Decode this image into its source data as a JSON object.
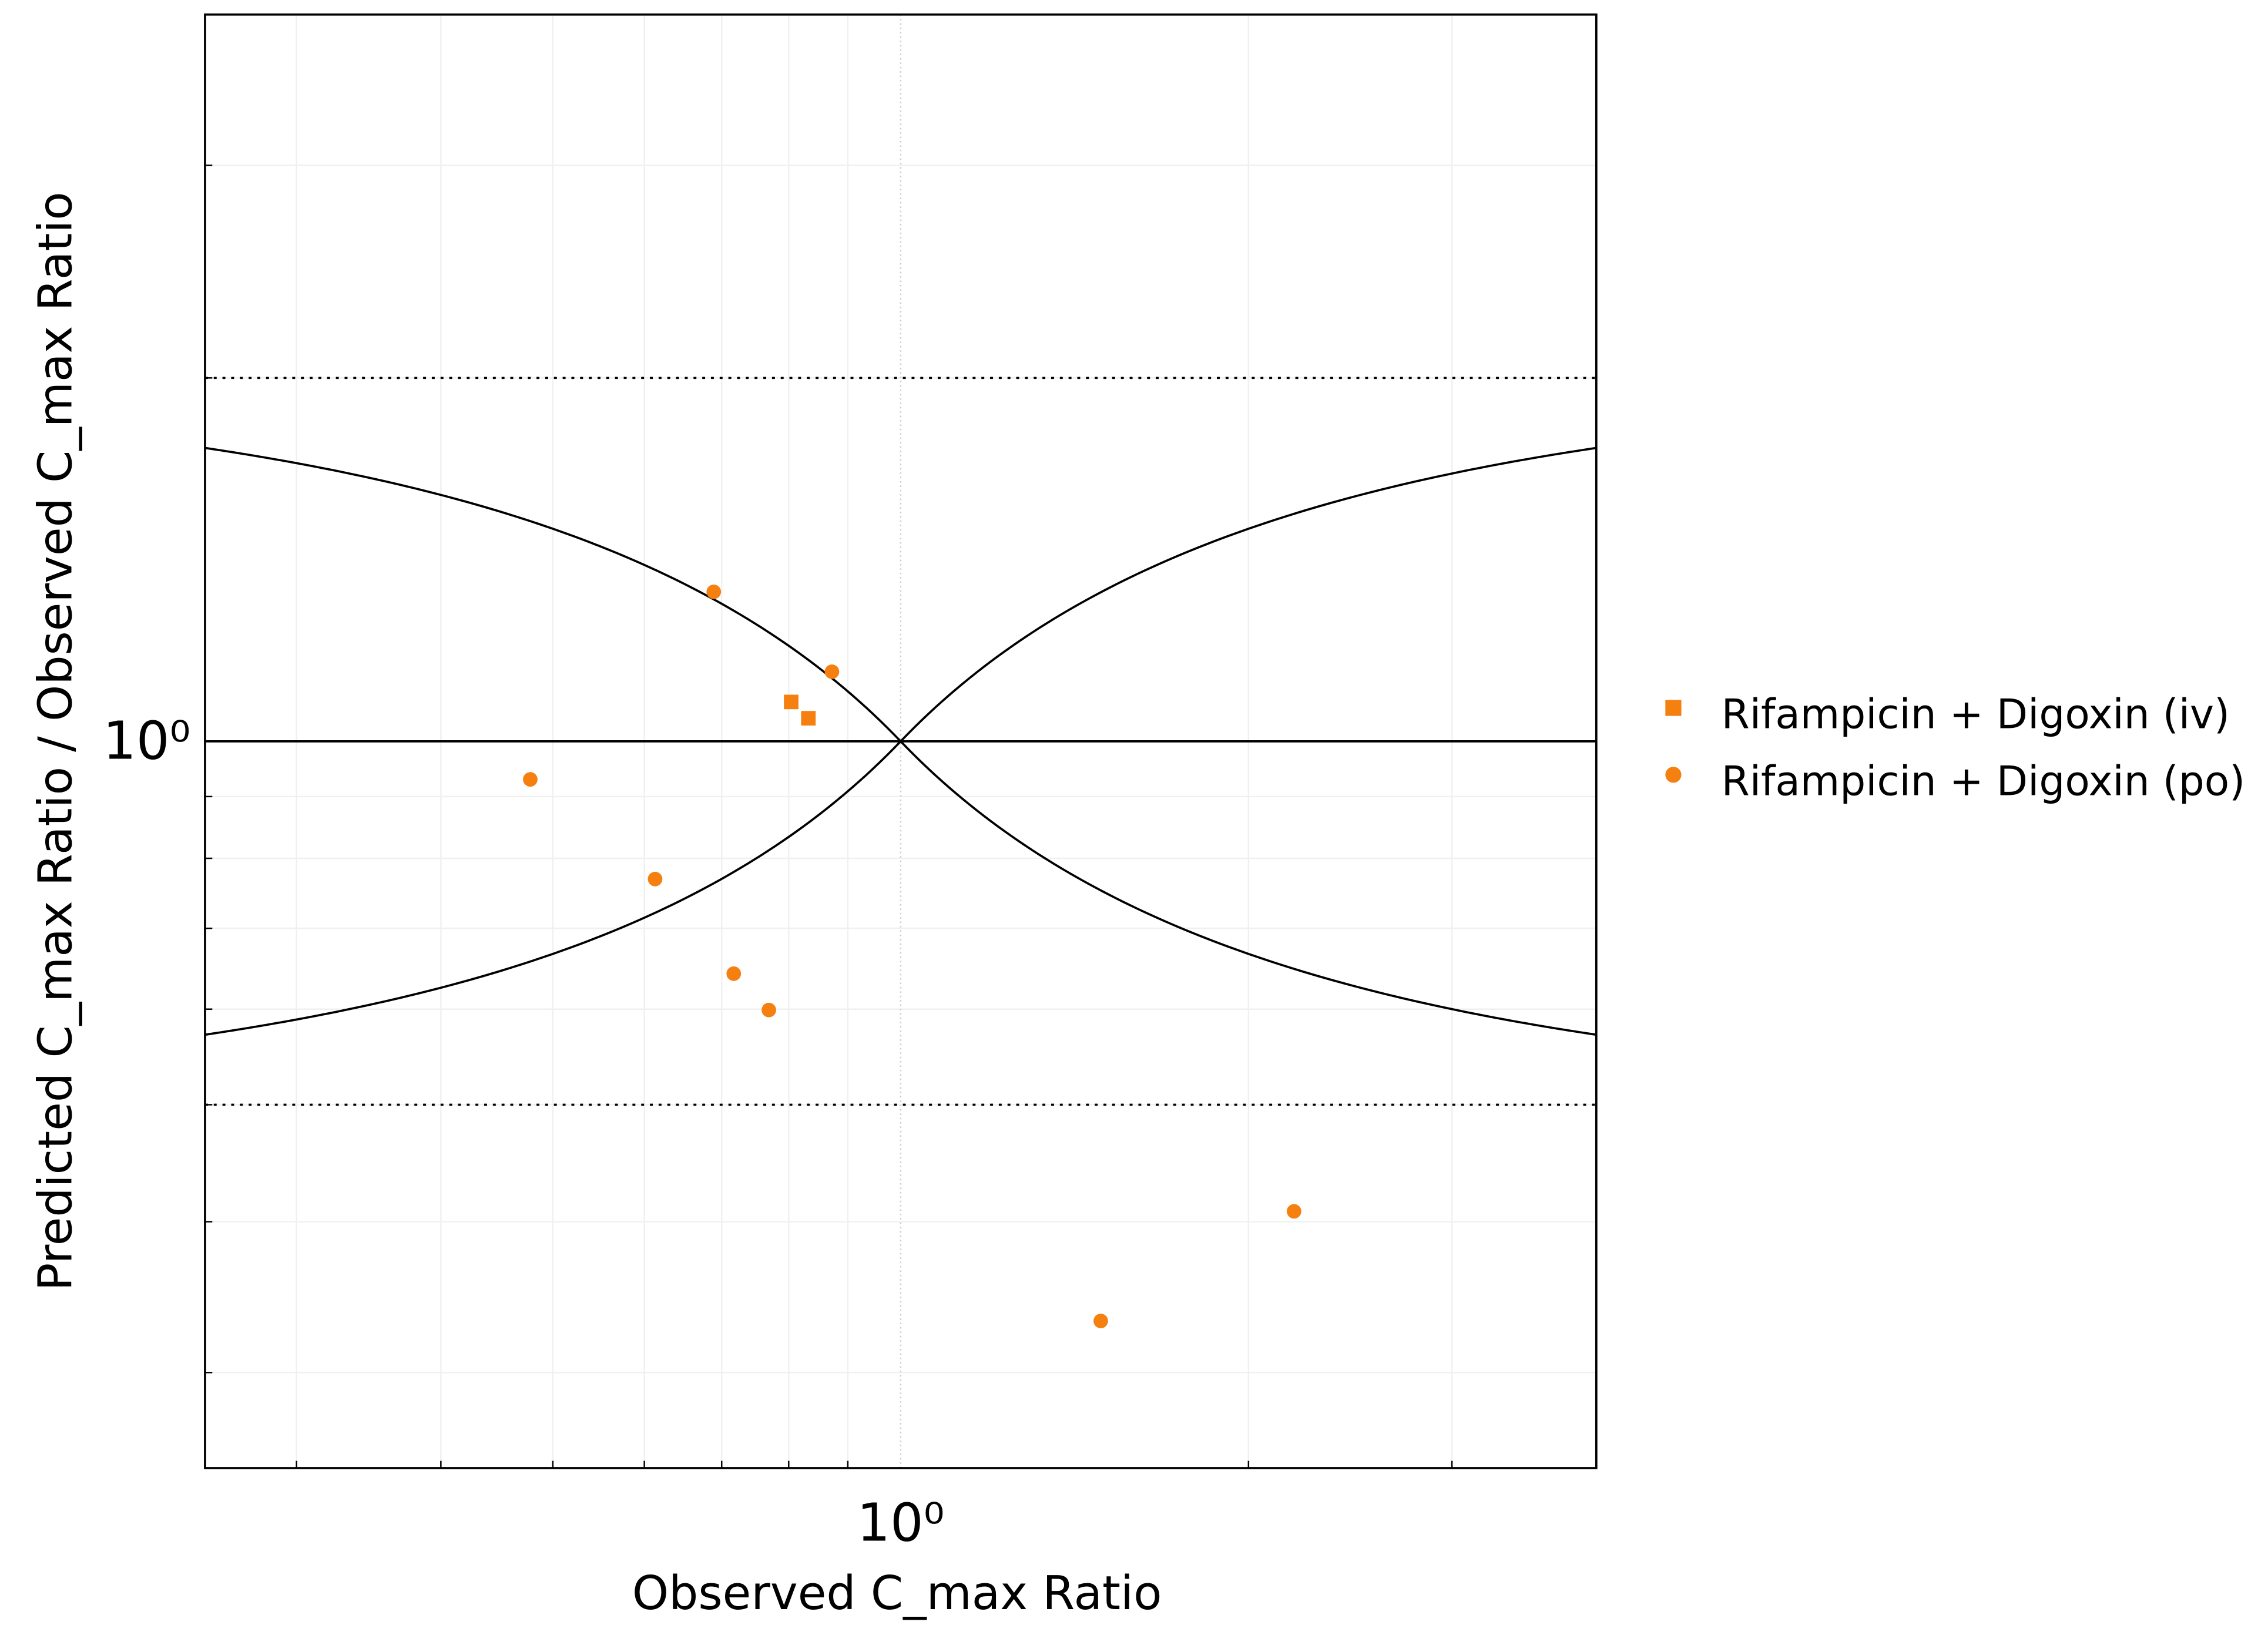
{
  "chart_data": {
    "type": "scatter",
    "x_label": "Observed C_max Ratio",
    "y_label": "Predicted C_max Ratio / Observed C_max Ratio",
    "x_scale": "log",
    "y_scale": "log",
    "xlim": [
      0.25,
      4
    ],
    "ylim": [
      0.25,
      4
    ],
    "xticks": [
      {
        "value": 1,
        "label": "10⁰"
      }
    ],
    "yticks": [
      {
        "value": 1,
        "label": "10⁰"
      }
    ],
    "xticks_minor": [
      0.3,
      0.4,
      0.5,
      0.6,
      0.7,
      0.8,
      0.9,
      2,
      3
    ],
    "yticks_minor": [
      0.3,
      0.4,
      0.5,
      0.6,
      0.7,
      0.8,
      0.9,
      2,
      3
    ],
    "grid": true,
    "identity_line": 1,
    "fold_limits": [
      0.5,
      2
    ],
    "guest_delta": 1,
    "legend_position": "right",
    "series": [
      {
        "name": "Rifampicin + Digoxin (iv)",
        "color": "#f57f0f",
        "marker": "square",
        "x": [
          0.804,
          0.832
        ],
        "values": [
          1.078,
          1.045
        ]
      },
      {
        "name": "Rifampicin + Digoxin (po)",
        "color": "#f57f0f",
        "marker": "circle",
        "x": [
          0.689,
          0.872,
          0.478,
          0.613,
          0.717,
          0.769,
          1.49,
          2.19
        ],
        "values": [
          1.33,
          1.142,
          0.93,
          0.769,
          0.642,
          0.599,
          0.331,
          0.408
        ]
      }
    ]
  }
}
